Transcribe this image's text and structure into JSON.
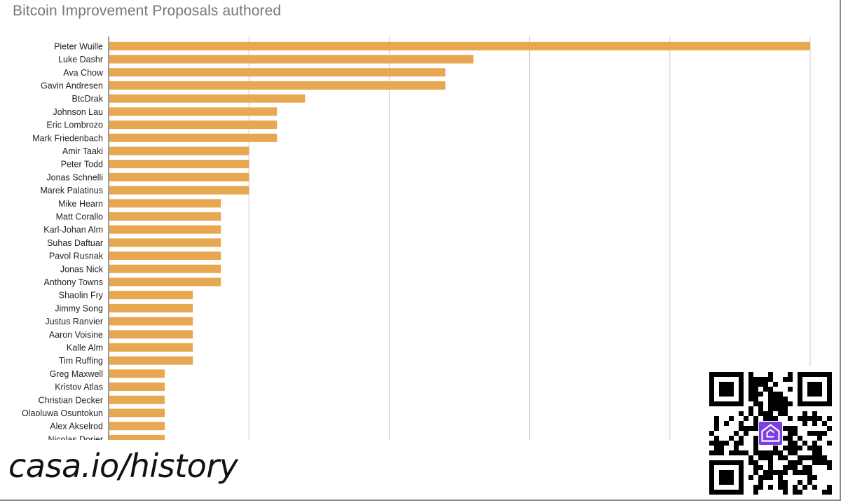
{
  "title": "Bitcoin Improvement Proposals authored",
  "footer": {
    "url_text": "casa.io/history"
  },
  "qr_code": {
    "icon": "casa-house-logo-icon",
    "logo_color": "#7b3fe4"
  },
  "colors": {
    "bar": "#e8a751",
    "grid": "#cccccc",
    "axis": "#333333"
  },
  "chart_data": {
    "type": "bar",
    "orientation": "horizontal",
    "title": "Bitcoin Improvement Proposals authored",
    "categories": [
      "Pieter Wuille",
      "Luke Dashr",
      "Ava Chow",
      "Gavin Andresen",
      "BtcDrak",
      "Johnson Lau",
      "Eric Lombrozo",
      "Mark Friedenbach",
      "Amir Taaki",
      "Peter Todd",
      "Jonas Schnelli",
      "Marek Palatinus",
      "Mike Hearn",
      "Matt Corallo",
      "Karl-Johan Alm",
      "Suhas Daftuar",
      "Pavol Rusnak",
      "Jonas Nick",
      "Anthony Towns",
      "Shaolin Fry",
      "Jimmy Song",
      "Justus Ranvier",
      "Aaron Voisine",
      "Kalle Alm",
      "Tim Ruffing",
      "Greg Maxwell",
      "Kristov Atlas",
      "Christian Decker",
      "Olaoluwa Osuntokun",
      "Alex Akselrod",
      "Nicolas Dorier"
    ],
    "values": [
      25,
      13,
      12,
      12,
      7,
      6,
      6,
      6,
      5,
      5,
      5,
      5,
      4,
      4,
      4,
      4,
      4,
      4,
      4,
      3,
      3,
      3,
      3,
      3,
      3,
      2,
      2,
      2,
      2,
      2,
      2
    ],
    "xlim": [
      0,
      25
    ],
    "grid": true,
    "legend": "none"
  }
}
